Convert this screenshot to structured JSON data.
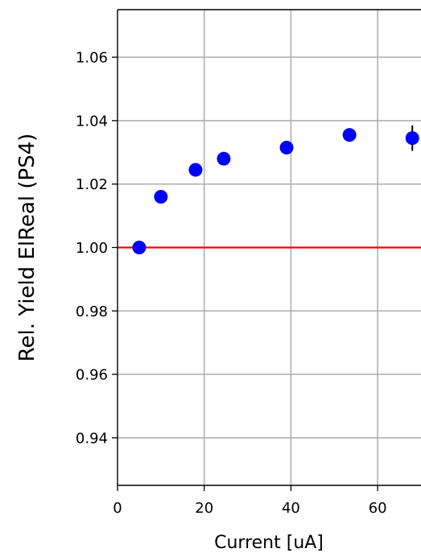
{
  "chart_data": {
    "type": "scatter",
    "title": "",
    "xlabel": "Current [uA]",
    "ylabel": "Rel. Yield ElReal (PS4)",
    "xlim": [
      0,
      70
    ],
    "ylim": [
      0.925,
      1.075
    ],
    "x_ticks": [
      0,
      20,
      40,
      60
    ],
    "y_ticks": [
      0.94,
      0.96,
      0.98,
      1.0,
      1.02,
      1.04,
      1.06
    ],
    "grid": true,
    "reference_line": {
      "y": 1.0,
      "color": "#ff0000"
    },
    "series": [
      {
        "color": "#0000ff",
        "x": [
          5,
          10,
          18,
          24.5,
          39,
          53.5,
          68
        ],
        "y": [
          1.0,
          1.016,
          1.0245,
          1.028,
          1.0315,
          1.0355,
          1.0345
        ],
        "yerr": [
          0.0005,
          0.0008,
          0.0008,
          0.0008,
          0.0008,
          0.0008,
          0.004
        ]
      }
    ]
  }
}
